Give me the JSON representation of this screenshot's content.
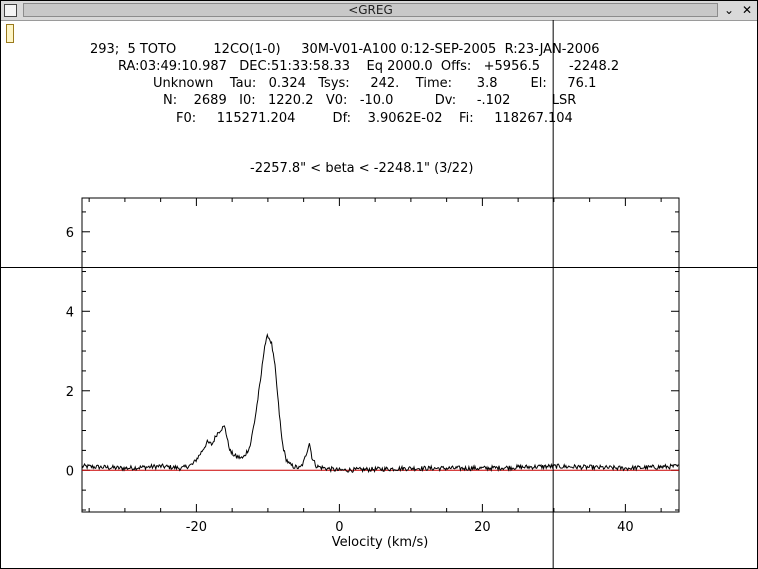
{
  "window": {
    "title": "<GREG",
    "minimize_icon": "minimize-icon",
    "close_icon": "close-icon",
    "close_glyph": "✕",
    "minimize_glyph": "⌄"
  },
  "header": {
    "line1": "293;  5 TOTO         12CO(1-0)     30M-V01-A100 0:12-SEP-2005  R:23-JAN-2006",
    "line2": "RA:03:49:10.987   DEC:51:33:58.33    Eq 2000.0  Offs:   +5956.5       -2248.2",
    "line3": "Unknown    Tau:   0.324   Tsys:     242.    Time:      3.8        El:     76.1",
    "line4": "N:    2689   I0:   1220.2   V0:   -10.0          Dv:     -.102          LSR",
    "line5": "F0:     115271.204         Df:    3.9062E-02    Fi:     118267.104",
    "subtitle": "-2257.8\" < beta < -2248.1\" (3/22)"
  },
  "chart_data": {
    "type": "line",
    "title": "-2257.8\" < beta < -2248.1\" (3/22)",
    "xlabel": "Velocity (km/s)",
    "ylabel": "",
    "xlim": [
      -36,
      47.5
    ],
    "ylim": [
      -1.05,
      6.85
    ],
    "xticks": [
      -20,
      0,
      20,
      40
    ],
    "yticks": [
      0,
      2,
      4,
      6
    ],
    "tick_labels_x": [
      "-20",
      "0",
      "20",
      "40"
    ],
    "tick_labels_y": [
      "0",
      "2",
      "4",
      "6"
    ],
    "baseline": {
      "y": 0.0,
      "color": "#cc0000"
    },
    "series": [
      {
        "color": "#000000",
        "x": [
          -36,
          -30,
          -25,
          -22,
          -20.5,
          -19.5,
          -18.5,
          -17.8,
          -17.2,
          -16.5,
          -16.0,
          -15.6,
          -15.2,
          -14.5,
          -13.5,
          -12.5,
          -11.8,
          -11.0,
          -10.5,
          -10.0,
          -9.5,
          -9.0,
          -8.5,
          -8.0,
          -7.5,
          -7.0,
          -6.5,
          -5.5,
          -5.0,
          -4.5,
          -4.2,
          -3.8,
          -3.2,
          -2.0,
          0,
          10,
          20,
          30,
          40,
          47.5
        ],
        "values": [
          0.1,
          0.05,
          0.1,
          0.05,
          0.15,
          0.4,
          0.7,
          0.65,
          0.9,
          1.05,
          1.1,
          0.7,
          0.45,
          0.35,
          0.3,
          0.6,
          1.3,
          2.3,
          3.1,
          3.4,
          3.2,
          2.6,
          1.6,
          0.7,
          0.3,
          0.15,
          0.1,
          0.05,
          0.2,
          0.5,
          0.7,
          0.3,
          0.1,
          0.05,
          0.0,
          0.05,
          0.05,
          0.1,
          0.05,
          0.1
        ]
      }
    ],
    "noise_amplitude": 0.06
  },
  "cursor": {
    "x_value": 29.9,
    "y_value": 5.1
  }
}
